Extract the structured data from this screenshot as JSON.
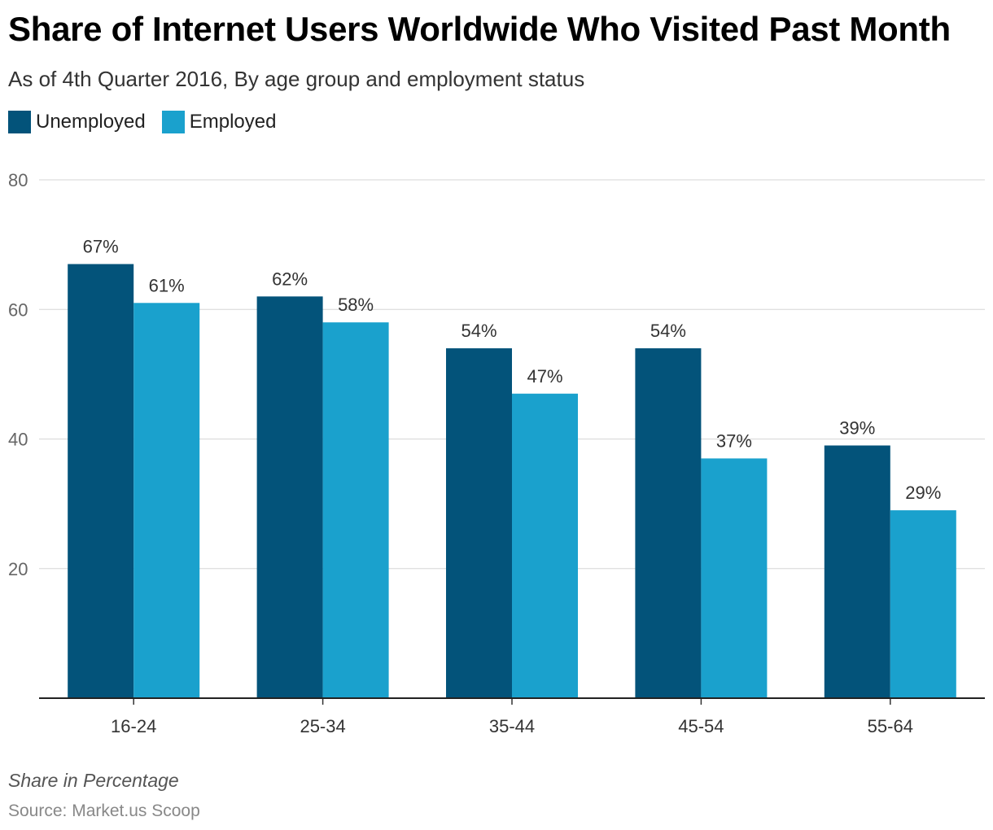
{
  "chart_data": {
    "type": "bar",
    "title": "Share of Internet Users Worldwide Who Visited Past Month",
    "subtitle": "As of 4th Quarter 2016, By age group and employment status",
    "categories": [
      "16-24",
      "25-34",
      "35-44",
      "45-54",
      "55-64"
    ],
    "series": [
      {
        "name": "Unemployed",
        "color": "#03537a",
        "values": [
          67,
          62,
          54,
          54,
          39
        ]
      },
      {
        "name": "Employed",
        "color": "#1aa1cd",
        "values": [
          61,
          58,
          47,
          37,
          29
        ]
      }
    ],
    "ylim": [
      0,
      80
    ],
    "yticks": [
      20,
      40,
      60,
      80
    ],
    "grid": true,
    "legend": "top-left",
    "value_suffix": "%",
    "note": "Share in Percentage",
    "source": "Source: Market.us Scoop"
  }
}
